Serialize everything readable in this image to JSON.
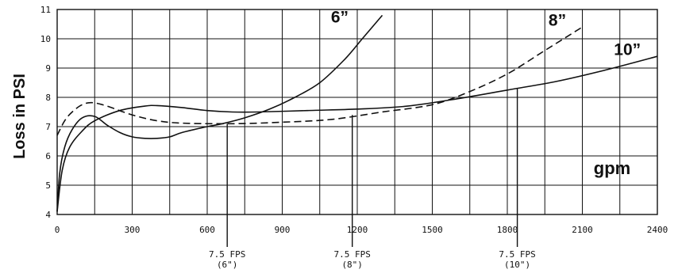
{
  "chart_data": {
    "type": "line",
    "ylabel": "Loss in PSI",
    "unit_label": "gpm",
    "xlim": [
      0,
      2400
    ],
    "ylim": [
      4,
      11
    ],
    "x_ticks": [
      0,
      300,
      600,
      900,
      1200,
      1500,
      1800,
      2100,
      2400
    ],
    "y_ticks": [
      4,
      5,
      6,
      7,
      8,
      9,
      10,
      11
    ],
    "grid": true,
    "series": [
      {
        "name": "6”",
        "dash": "solid",
        "label_at": [
          1130,
          10.55
        ],
        "points": [
          [
            0,
            4.1
          ],
          [
            10,
            5.4
          ],
          [
            30,
            6.3
          ],
          [
            60,
            6.9
          ],
          [
            100,
            7.3
          ],
          [
            150,
            7.35
          ],
          [
            200,
            7.05
          ],
          [
            250,
            6.8
          ],
          [
            300,
            6.65
          ],
          [
            350,
            6.6
          ],
          [
            400,
            6.6
          ],
          [
            450,
            6.65
          ],
          [
            500,
            6.8
          ],
          [
            600,
            7.0
          ],
          [
            660,
            7.1
          ],
          [
            750,
            7.3
          ],
          [
            850,
            7.6
          ],
          [
            950,
            8.0
          ],
          [
            1050,
            8.5
          ],
          [
            1150,
            9.3
          ],
          [
            1220,
            10.0
          ],
          [
            1300,
            10.8
          ]
        ]
      },
      {
        "name": "8”",
        "dash": "dash",
        "label_at": [
          2000,
          10.45
        ],
        "points": [
          [
            0,
            6.7
          ],
          [
            30,
            7.2
          ],
          [
            60,
            7.5
          ],
          [
            100,
            7.75
          ],
          [
            140,
            7.82
          ],
          [
            200,
            7.7
          ],
          [
            300,
            7.4
          ],
          [
            400,
            7.2
          ],
          [
            500,
            7.12
          ],
          [
            700,
            7.1
          ],
          [
            900,
            7.15
          ],
          [
            1100,
            7.25
          ],
          [
            1300,
            7.5
          ],
          [
            1500,
            7.75
          ],
          [
            1650,
            8.2
          ],
          [
            1800,
            8.8
          ],
          [
            1950,
            9.6
          ],
          [
            2100,
            10.4
          ]
        ]
      },
      {
        "name": "10”",
        "dash": "solid",
        "label_at": [
          2280,
          9.45
        ],
        "points": [
          [
            0,
            4.1
          ],
          [
            20,
            5.5
          ],
          [
            50,
            6.3
          ],
          [
            100,
            6.85
          ],
          [
            150,
            7.2
          ],
          [
            250,
            7.55
          ],
          [
            350,
            7.7
          ],
          [
            400,
            7.72
          ],
          [
            500,
            7.65
          ],
          [
            600,
            7.55
          ],
          [
            700,
            7.5
          ],
          [
            800,
            7.5
          ],
          [
            1000,
            7.55
          ],
          [
            1200,
            7.6
          ],
          [
            1400,
            7.7
          ],
          [
            1600,
            7.95
          ],
          [
            1800,
            8.25
          ],
          [
            2000,
            8.55
          ],
          [
            2200,
            8.95
          ],
          [
            2400,
            9.4
          ]
        ]
      }
    ],
    "markers": [
      {
        "x": 680,
        "y_top": 7.1,
        "label": "7.5 FPS",
        "sublabel": "(6\")"
      },
      {
        "x": 1180,
        "y_top": 7.4,
        "label": "7.5 FPS",
        "sublabel": "(8\")"
      },
      {
        "x": 1840,
        "y_top": 8.3,
        "label": "7.5 FPS",
        "sublabel": "(10\")"
      }
    ]
  }
}
